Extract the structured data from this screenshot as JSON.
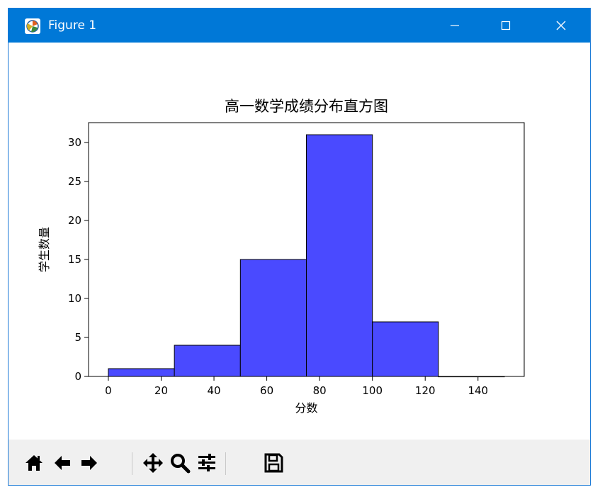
{
  "window": {
    "title": "Figure 1",
    "icon": "matplotlib-figure-icon",
    "controls": [
      "minimize-icon",
      "maximize-icon",
      "close-icon"
    ]
  },
  "toolbar": {
    "buttons": [
      "home-icon",
      "back-arrow-icon",
      "forward-arrow-icon",
      "pan-icon",
      "zoom-icon",
      "subplots-config-icon",
      "save-icon"
    ]
  },
  "chart_data": {
    "type": "bar",
    "title": "高一数学成绩分布直方图",
    "xlabel": "分数",
    "ylabel": "学生数量",
    "bins": [
      [
        0,
        25
      ],
      [
        25,
        50
      ],
      [
        50,
        75
      ],
      [
        75,
        100
      ],
      [
        100,
        125
      ],
      [
        125,
        150
      ]
    ],
    "values": [
      1,
      4,
      15,
      31,
      7,
      0
    ],
    "xticks": [
      0,
      20,
      40,
      60,
      80,
      100,
      120,
      140
    ],
    "yticks": [
      0,
      5,
      10,
      15,
      20,
      25,
      30
    ],
    "xlim": [
      -7.5,
      157.5
    ],
    "ylim": [
      0,
      32.55
    ],
    "bar_color": "#4a4aff",
    "edge_color": "#000000",
    "grid": false,
    "legend": "none"
  }
}
